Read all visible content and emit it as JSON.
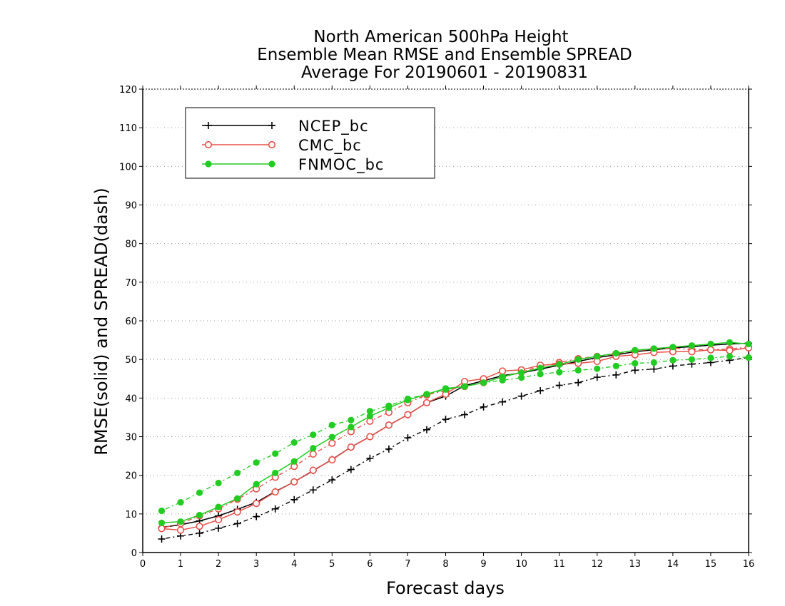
{
  "chart_data": {
    "type": "line",
    "title_lines": [
      "North American 500hPa Height",
      "Ensemble Mean RMSE and Ensemble SPREAD",
      "Average For 20190601 - 20190831"
    ],
    "xlabel": "Forecast days",
    "ylabel": "RMSE(solid) and SPREAD(dash)",
    "xlim": [
      0,
      16
    ],
    "ylim": [
      0,
      120
    ],
    "x_ticks": [
      0,
      1,
      2,
      3,
      4,
      5,
      6,
      7,
      8,
      9,
      10,
      11,
      12,
      13,
      14,
      15,
      16
    ],
    "y_ticks": [
      0,
      10,
      20,
      30,
      40,
      50,
      60,
      70,
      80,
      90,
      100,
      110,
      120
    ],
    "grid": "horizontal-dotted",
    "legend_position": "top-left",
    "x": [
      0.5,
      1,
      1.5,
      2,
      2.5,
      3,
      3.5,
      4,
      4.5,
      5,
      5.5,
      6,
      6.5,
      7,
      7.5,
      8,
      8.5,
      9,
      9.5,
      10,
      10.5,
      11,
      11.5,
      12,
      12.5,
      13,
      13.5,
      14,
      14.5,
      15,
      15.5,
      16
    ],
    "series": [
      {
        "name": "NCEP_bc",
        "color": "#000000",
        "marker": "plus",
        "rmse": [
          6.5,
          7.2,
          8.2,
          9.5,
          11.2,
          13.0,
          15.8,
          18.3,
          21.2,
          24.1,
          27.3,
          30.0,
          33.0,
          35.7,
          38.8,
          40.5,
          43.2,
          44.5,
          45.8,
          46.5,
          47.5,
          48.5,
          49.5,
          50.5,
          51.2,
          52.0,
          52.5,
          53.0,
          53.3,
          53.7,
          54.0,
          54.2
        ],
        "spread": [
          3.5,
          4.3,
          5.0,
          6.3,
          7.5,
          9.3,
          11.3,
          13.7,
          16.2,
          18.8,
          21.5,
          24.4,
          26.8,
          29.7,
          31.8,
          34.5,
          35.7,
          37.7,
          39.0,
          40.5,
          41.9,
          43.3,
          44.0,
          45.4,
          46.0,
          47.2,
          47.5,
          48.3,
          48.8,
          49.2,
          49.8,
          50.5
        ]
      },
      {
        "name": "CMC_bc",
        "color": "#e8504a",
        "marker": "open-circle",
        "rmse": [
          6.2,
          5.8,
          6.8,
          8.5,
          10.5,
          12.7,
          15.7,
          18.3,
          21.3,
          24.0,
          27.3,
          30.0,
          33.0,
          35.7,
          38.8,
          41.0,
          44.3,
          45.0,
          47.0,
          47.3,
          48.5,
          48.8,
          49.0,
          49.5,
          50.8,
          51.2,
          51.8,
          52.0,
          52.0,
          52.5,
          52.3,
          53.0
        ],
        "spread": [
          6.3,
          7.5,
          9.5,
          11.3,
          13.8,
          16.5,
          19.5,
          22.3,
          25.5,
          28.3,
          31.3,
          34.0,
          36.3,
          38.8,
          40.8,
          42.0,
          43.0,
          44.0,
          45.5,
          46.7,
          48.3,
          49.2,
          50.2,
          50.8,
          51.5,
          52.2,
          52.7,
          53.0,
          52.5,
          52.5,
          52.7,
          53.2
        ]
      },
      {
        "name": "FNMOC_bc",
        "color": "#22cc22",
        "marker": "filled-circle",
        "rmse": [
          7.7,
          8.0,
          9.7,
          11.8,
          14.0,
          17.7,
          20.6,
          23.6,
          27.0,
          29.9,
          32.5,
          35.3,
          37.5,
          39.5,
          41.0,
          42.5,
          43.0,
          44.0,
          45.5,
          46.6,
          47.8,
          48.7,
          50.0,
          50.8,
          51.6,
          52.4,
          52.8,
          53.2,
          53.6,
          54.0,
          54.4,
          54.0
        ],
        "spread": [
          10.8,
          13.0,
          15.5,
          18.0,
          20.6,
          23.3,
          25.6,
          28.5,
          30.5,
          33.0,
          34.3,
          36.6,
          38.0,
          39.8,
          41.0,
          42.2,
          43.0,
          44.0,
          44.6,
          45.3,
          46.2,
          46.7,
          47.2,
          47.6,
          48.3,
          49.0,
          49.2,
          49.8,
          50.0,
          50.4,
          50.8,
          50.5
        ]
      }
    ]
  }
}
